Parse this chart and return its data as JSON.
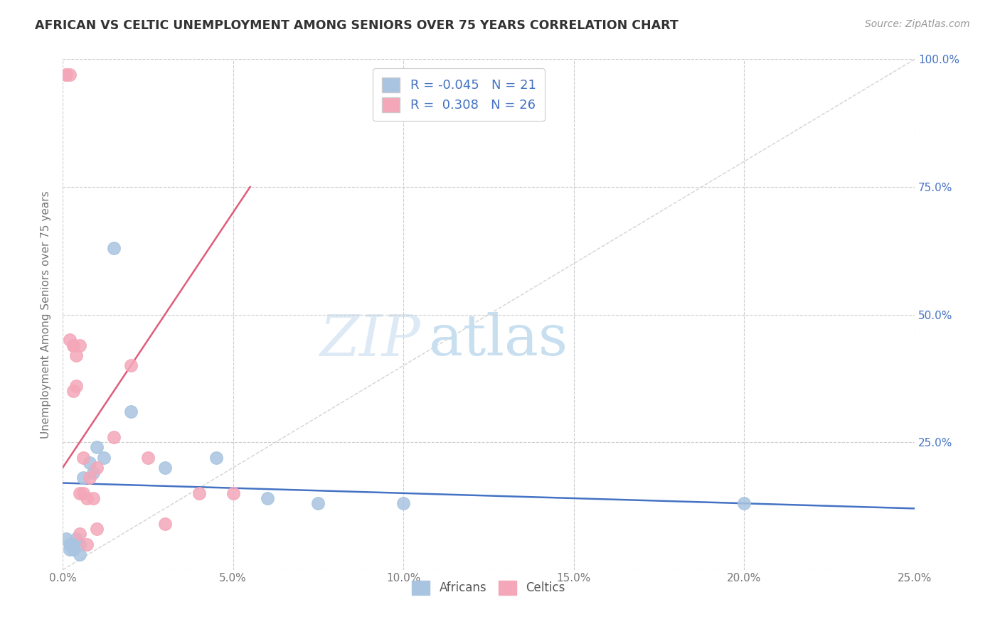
{
  "title": "AFRICAN VS CELTIC UNEMPLOYMENT AMONG SENIORS OVER 75 YEARS CORRELATION CHART",
  "source": "Source: ZipAtlas.com",
  "ylabel": "Unemployment Among Seniors over 75 years",
  "xlabel": "",
  "xlim": [
    0.0,
    0.25
  ],
  "ylim": [
    0.0,
    1.0
  ],
  "xticks": [
    0.0,
    0.05,
    0.1,
    0.15,
    0.2,
    0.25
  ],
  "yticks": [
    0.0,
    0.25,
    0.5,
    0.75,
    1.0
  ],
  "xtick_labels": [
    "0.0%",
    "5.0%",
    "10.0%",
    "15.0%",
    "20.0%",
    "25.0%"
  ],
  "left_ytick_labels": [
    "",
    "",
    "",
    "",
    ""
  ],
  "right_ytick_labels": [
    "",
    "25.0%",
    "50.0%",
    "75.0%",
    "100.0%"
  ],
  "africans_color": "#a8c4e0",
  "celtics_color": "#f4a7b9",
  "africans_line_color": "#4472c4",
  "celtics_line_color": "#e05c7a",
  "diagonal_color": "#c8c8c8",
  "R_africans": -0.045,
  "N_africans": 21,
  "R_celtics": 0.308,
  "N_celtics": 26,
  "background_color": "#ffffff",
  "watermark_zip": "ZIP",
  "watermark_atlas": "atlas",
  "africans_x": [
    0.001,
    0.002,
    0.002,
    0.003,
    0.003,
    0.004,
    0.005,
    0.005,
    0.006,
    0.008,
    0.009,
    0.01,
    0.012,
    0.015,
    0.02,
    0.03,
    0.045,
    0.06,
    0.075,
    0.1,
    0.2
  ],
  "africans_y": [
    0.06,
    0.05,
    0.04,
    0.05,
    0.04,
    0.06,
    0.03,
    0.05,
    0.18,
    0.21,
    0.19,
    0.24,
    0.22,
    0.63,
    0.31,
    0.2,
    0.22,
    0.14,
    0.13,
    0.13,
    0.13
  ],
  "celtics_x": [
    0.001,
    0.001,
    0.002,
    0.002,
    0.003,
    0.003,
    0.003,
    0.004,
    0.004,
    0.005,
    0.005,
    0.005,
    0.006,
    0.006,
    0.007,
    0.007,
    0.008,
    0.009,
    0.01,
    0.01,
    0.015,
    0.02,
    0.025,
    0.03,
    0.04,
    0.05
  ],
  "celtics_y": [
    0.97,
    0.97,
    0.97,
    0.45,
    0.44,
    0.44,
    0.35,
    0.36,
    0.42,
    0.44,
    0.15,
    0.07,
    0.22,
    0.15,
    0.05,
    0.14,
    0.18,
    0.14,
    0.08,
    0.2,
    0.26,
    0.4,
    0.22,
    0.09,
    0.15,
    0.15
  ],
  "africans_trend": [
    0.0,
    0.25
  ],
  "africans_trend_y": [
    0.17,
    0.12
  ],
  "celtics_trend": [
    0.0,
    0.055
  ],
  "celtics_trend_y": [
    0.2,
    0.75
  ]
}
